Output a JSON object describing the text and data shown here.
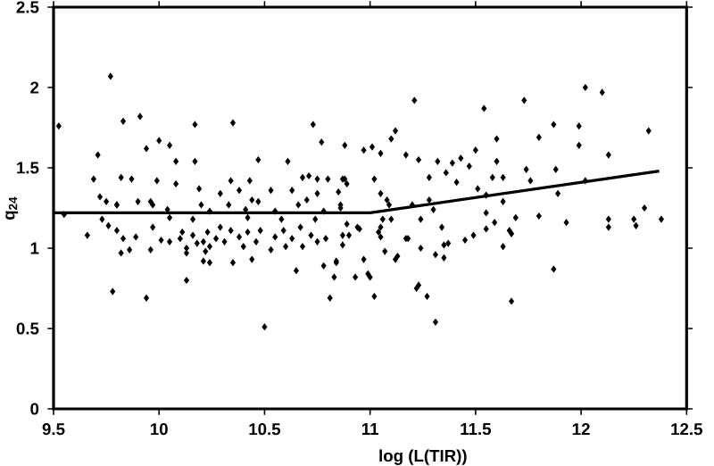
{
  "chart_data": {
    "type": "scatter",
    "xlabel": "log (L(TIR))",
    "ylabel": "q$_{24}$",
    "xlim": [
      9.5,
      12.5
    ],
    "ylim": [
      0,
      2.5
    ],
    "xticks": [
      9.5,
      10,
      10.5,
      11,
      11.5,
      12,
      12.5
    ],
    "yticks": [
      0,
      0.5,
      1,
      1.5,
      2,
      2.5
    ],
    "grid": false,
    "marker": "diamond",
    "series": [
      {
        "color": "#000000",
        "x": [
          9.525,
          9.77,
          9.83,
          9.91,
          10.17,
          10.35,
          10.73,
          9.71,
          9.94,
          10.0,
          10.05,
          10.77,
          10.88,
          10.47,
          10.61,
          10.08,
          10.17,
          9.69,
          9.82,
          9.87,
          9.99,
          10.34,
          10.43,
          10.68,
          10.71,
          10.75,
          10.8,
          10.87,
          9.72,
          9.8,
          9.9,
          9.96,
          10.08,
          10.19,
          10.29,
          10.38,
          10.44,
          10.53,
          10.63,
          10.75,
          10.85,
          11.21,
          11.54,
          11.73,
          12.02,
          12.1,
          11.87,
          11.99,
          12.32,
          11.99,
          11.8,
          12.13,
          11.6,
          11.5,
          11.12,
          11.1,
          10.97,
          11.01,
          11.05,
          11.17,
          11.23,
          11.32,
          11.39,
          11.43,
          11.6,
          11.28,
          11.36,
          11.41,
          11.47,
          11.51,
          11.58,
          11.63,
          11.74,
          11.76,
          11.88,
          11.89,
          12.02,
          11.63,
          11.55,
          11.2,
          11.3,
          11.28,
          10.88,
          10.89,
          11.05,
          11.08,
          11.09,
          10.86,
          11.02,
          11.55,
          11.69,
          11.8,
          12.3,
          12.13,
          12.25,
          12.38,
          11.93,
          12.13,
          12.26,
          11.87,
          11.67,
          11.31,
          11.27,
          11.23,
          11.22,
          11.02,
          11.0,
          10.99,
          10.93,
          10.97,
          11.13,
          11.12,
          11.07,
          11.24,
          11.31,
          11.35,
          11.35,
          11.37,
          11.45,
          11.49,
          11.55,
          11.59,
          11.63,
          11.66,
          11.67,
          11.17,
          11.18,
          10.87,
          10.9,
          10.94,
          10.95,
          11.04,
          11.05,
          11.05,
          11.06,
          11.1,
          11.24,
          11.34,
          10.84,
          9.78,
          9.94,
          10.13,
          10.5,
          10.65,
          10.81,
          10.83,
          10.78,
          10.84,
          10.35,
          10.44,
          10.21,
          10.24,
          9.82,
          9.86,
          9.66,
          9.73,
          9.76,
          9.8,
          9.83,
          9.89,
          9.96,
          9.97,
          10.01,
          10.05,
          10.1,
          10.11,
          10.13,
          10.13,
          10.16,
          10.18,
          10.21,
          10.22,
          10.23,
          10.24,
          10.27,
          10.29,
          10.31,
          10.34,
          10.38,
          10.4,
          10.42,
          10.46,
          10.48,
          10.53,
          10.55,
          10.59,
          10.6,
          10.63,
          10.67,
          10.68,
          10.72,
          10.75,
          10.79,
          10.87,
          10.89,
          10.05,
          10.16,
          10.42,
          10.58,
          10.74,
          9.75,
          9.8,
          9.97,
          10.04,
          10.2,
          10.24,
          10.33,
          10.41,
          10.47,
          10.55,
          10.66,
          10.7,
          10.78,
          10.86,
          9.55
        ],
        "values": [
          1.76,
          2.07,
          1.79,
          1.82,
          1.77,
          1.78,
          1.77,
          1.58,
          1.62,
          1.67,
          1.64,
          1.66,
          1.64,
          1.55,
          1.54,
          1.54,
          1.54,
          1.43,
          1.44,
          1.43,
          1.42,
          1.42,
          1.42,
          1.44,
          1.45,
          1.43,
          1.43,
          1.43,
          1.32,
          1.27,
          1.29,
          1.29,
          1.4,
          1.37,
          1.34,
          1.36,
          1.3,
          1.36,
          1.36,
          1.34,
          1.35,
          1.92,
          1.87,
          1.92,
          2.0,
          1.97,
          1.77,
          1.76,
          1.73,
          1.64,
          1.69,
          1.58,
          1.68,
          1.61,
          1.73,
          1.68,
          1.61,
          1.63,
          1.59,
          1.58,
          1.55,
          1.54,
          1.53,
          1.56,
          1.54,
          1.44,
          1.47,
          1.41,
          1.51,
          1.37,
          1.44,
          1.44,
          1.49,
          1.42,
          1.49,
          1.34,
          1.42,
          1.29,
          1.33,
          1.27,
          1.24,
          1.3,
          1.43,
          1.4,
          1.34,
          1.3,
          1.27,
          1.25,
          1.43,
          1.22,
          1.19,
          1.2,
          1.25,
          1.18,
          1.18,
          1.18,
          1.16,
          1.13,
          1.14,
          0.87,
          0.67,
          0.54,
          0.7,
          0.77,
          0.75,
          0.7,
          0.82,
          0.84,
          0.82,
          0.93,
          0.95,
          0.93,
          0.98,
          1.0,
          0.96,
          0.94,
          1.02,
          1.03,
          1.05,
          1.08,
          1.12,
          1.16,
          1.01,
          1.11,
          1.09,
          1.06,
          1.06,
          1.02,
          1.08,
          1.13,
          1.12,
          1.1,
          1.07,
          1.13,
          1.18,
          1.18,
          1.18,
          1.13,
          0.91,
          0.73,
          0.69,
          0.8,
          0.51,
          0.86,
          0.69,
          0.82,
          0.89,
          0.92,
          0.91,
          0.93,
          0.92,
          0.91,
          0.97,
          0.99,
          1.08,
          1.18,
          1.14,
          1.11,
          1.06,
          1.07,
          0.99,
          1.13,
          1.05,
          1.04,
          1.06,
          1.1,
          0.97,
          1.0,
          1.08,
          1.03,
          1.04,
          0.98,
          1.1,
          1.01,
          1.06,
          1.13,
          1.04,
          1.11,
          1.07,
          1.01,
          1.1,
          1.04,
          1.11,
          0.99,
          1.07,
          1.11,
          1.01,
          1.06,
          1.13,
          1.01,
          1.08,
          1.04,
          1.06,
          1.08,
          1.15,
          1.19,
          1.18,
          1.19,
          1.18,
          1.18,
          1.29,
          1.27,
          1.27,
          1.24,
          1.27,
          1.23,
          1.27,
          1.24,
          1.29,
          1.23,
          1.27,
          1.3,
          1.23,
          1.27,
          1.21
        ]
      },
      {
        "type": "line",
        "color": "#000000",
        "marker": "none",
        "line_style": "solid",
        "x": [
          9.5,
          11.0,
          12.37
        ],
        "values": [
          1.22,
          1.22,
          1.48
        ]
      }
    ]
  }
}
